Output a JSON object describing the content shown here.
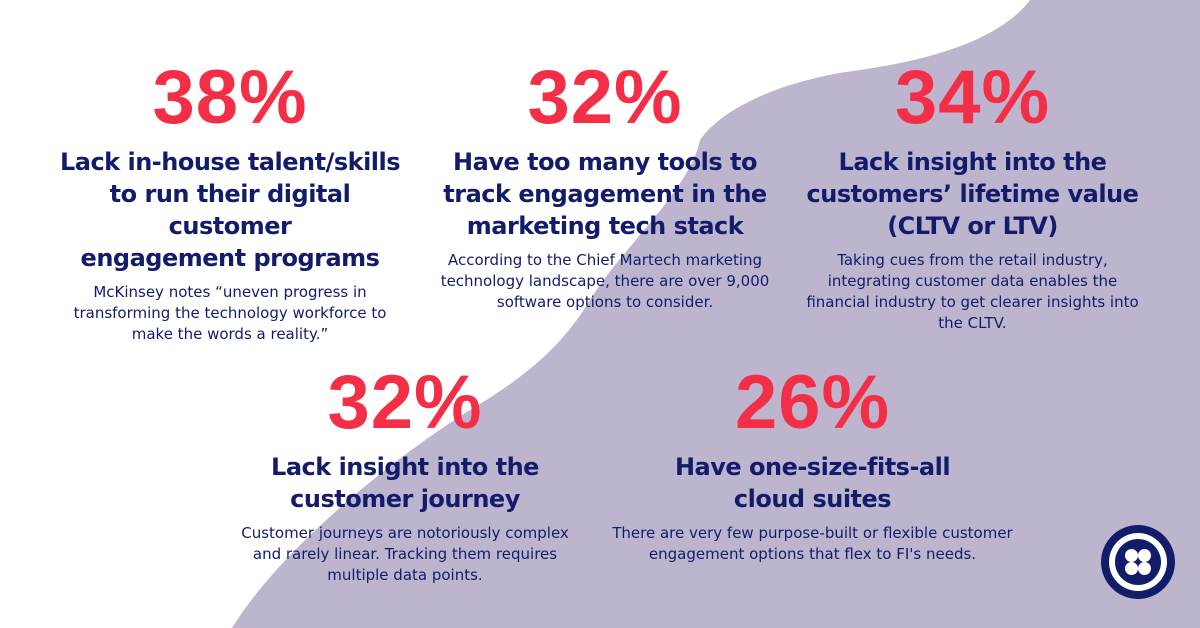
{
  "colors": {
    "accent": "#f22f46",
    "navy": "#121c6b",
    "blob": "#bcb5cd",
    "background": "#ffffff"
  },
  "stats": [
    {
      "percent": "38%",
      "heading_lines": [
        "Lack in-house talent/skills",
        "to run their digital customer",
        "engagement programs"
      ],
      "body_lines": [
        "McKinsey notes “uneven progress in",
        "transforming the technology workforce to",
        "make the words a reality.”"
      ]
    },
    {
      "percent": "32%",
      "heading_lines": [
        "Have too many tools to",
        "track engagement in the",
        "marketing tech stack"
      ],
      "body_lines": [
        "According to the Chief Martech marketing",
        "technology landscape, there are over 9,000",
        "software options to consider."
      ]
    },
    {
      "percent": "34%",
      "heading_lines": [
        "Lack insight into the",
        "customers’ lifetime value",
        "(CLTV or LTV)"
      ],
      "body_lines": [
        "Taking cues from the retail industry,",
        "integrating customer data enables the",
        "financial industry to get clearer insights into",
        "the CLTV."
      ]
    },
    {
      "percent": "32%",
      "heading_lines": [
        "Lack insight into the",
        "customer journey"
      ],
      "body_lines": [
        "Customer journeys are notoriously complex",
        "and rarely linear. Tracking them requires",
        "multiple data points."
      ]
    },
    {
      "percent": "26%",
      "heading_lines": [
        "Have one-size-fits-all",
        "cloud suites"
      ],
      "body_lines": [
        "There are very few purpose-built or flexible customer",
        "engagement options that flex to FI's needs."
      ]
    }
  ],
  "logo": {
    "icon": "twilio-logo-icon"
  }
}
